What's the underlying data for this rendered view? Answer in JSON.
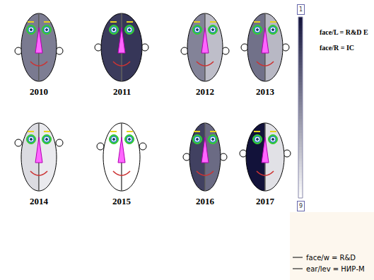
{
  "chart_data": {
    "type": "chernoff",
    "faces": [
      {
        "year": "2010",
        "face_left": 4.5,
        "face_right": 4.6,
        "face_width": 5,
        "ear_level": 4
      },
      {
        "year": "2011",
        "face_left": 2.4,
        "face_right": 2.2,
        "face_width": 7,
        "ear_level": 5
      },
      {
        "year": "2012",
        "face_left": 4.8,
        "face_right": 6.8,
        "face_width": 5,
        "ear_level": 4
      },
      {
        "year": "2013",
        "face_left": 4.2,
        "face_right": 6.6,
        "face_width": 5,
        "ear_level": 5
      },
      {
        "year": "2014",
        "face_left": 7.8,
        "face_right": 8.3,
        "face_width": 5,
        "ear_level": 9
      },
      {
        "year": "2015",
        "face_left": 9,
        "face_right": 9,
        "face_width": 5.5,
        "ear_level": 8
      },
      {
        "year": "2016",
        "face_left": 2.6,
        "face_right": 4,
        "face_width": 3.5,
        "ear_level": 5
      },
      {
        "year": "2017",
        "face_left": 1,
        "face_right": 8,
        "face_width": 6,
        "ear_level": 6
      }
    ],
    "features": {
      "face_left": "face/L = R&D E",
      "face_right": "face/R = IC",
      "face_width": "face/w = R&D",
      "ear_level": "ear/lev = НИР-М"
    },
    "color_range": [
      1,
      9
    ],
    "color_ticks": [
      1,
      9
    ],
    "tick_labels": false
  }
}
